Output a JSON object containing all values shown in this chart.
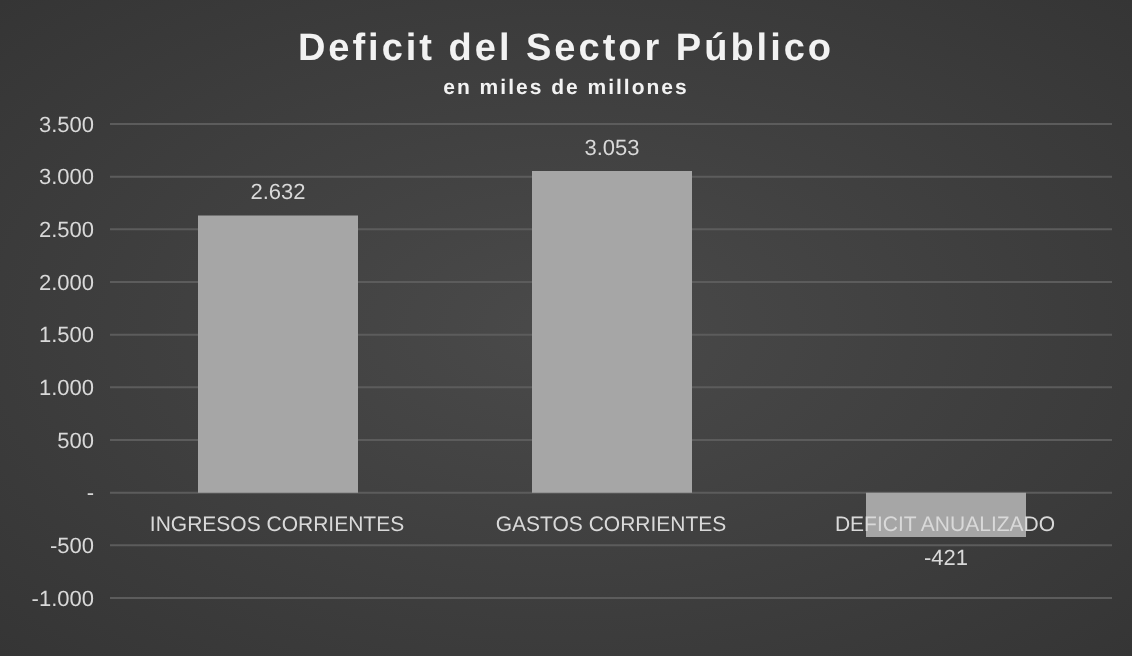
{
  "chart_data": {
    "type": "bar",
    "title": "Deficit del Sector Público",
    "subtitle": "en miles de millones",
    "categories": [
      "INGRESOS CORRIENTES",
      "GASTOS CORRIENTES",
      "DEFICIT ANUALIZADO"
    ],
    "values": [
      2632,
      3053,
      -421
    ],
    "value_labels": [
      "2.632",
      "3.053",
      "-421"
    ],
    "color": "#a6a6a6",
    "ylim": [
      -1000,
      3500
    ],
    "yticks": [
      {
        "value": -1000,
        "label": "-1.000"
      },
      -500,
      {
        "value": 0,
        "label": "-"
      },
      500,
      {
        "value": 1000,
        "label": "1.000"
      },
      {
        "value": 1500,
        "label": "1.500"
      },
      {
        "value": 2000,
        "label": "2.000"
      },
      {
        "value": 2500,
        "label": "2.500"
      },
      {
        "value": 3000,
        "label": "3.000"
      },
      {
        "value": 3500,
        "label": "3.500"
      }
    ],
    "grid": "y"
  }
}
